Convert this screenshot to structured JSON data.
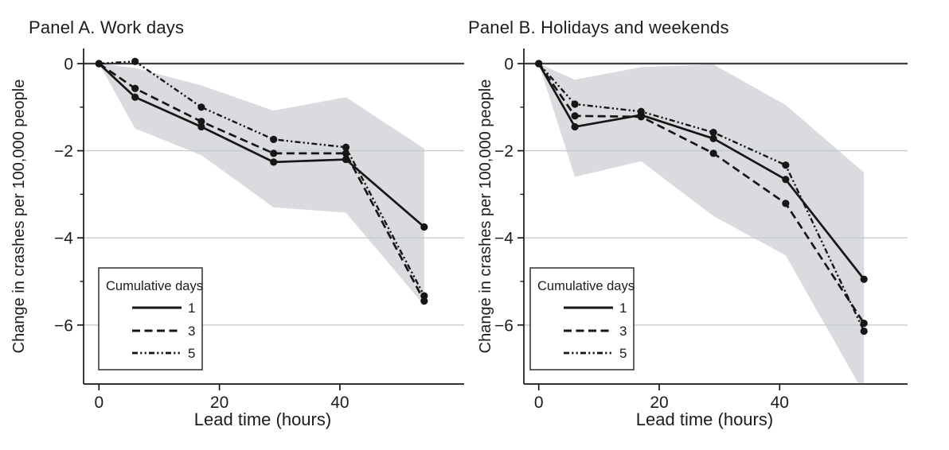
{
  "figure": {
    "y_axis_label": "Change in crashes per 100,000 people",
    "x_axis_label": "Lead time (hours)",
    "legend_title": "Cumulative days",
    "colors": {
      "line": "#161616",
      "marker": "#161616",
      "band": "#d9dbde",
      "gridline": "#c6cbd0",
      "zero_line": "#3c4044",
      "axis": "#161616",
      "text": "#1c1c1c",
      "legend_bg": "#ffffff",
      "legend_border": "#2e2e2e"
    }
  },
  "chart_data": [
    {
      "type": "line",
      "title": "Panel A. Work days",
      "xlabel": "Lead time (hours)",
      "ylabel": "Change in crashes per 100,000 people",
      "x": [
        0,
        6,
        17,
        29,
        41,
        54
      ],
      "x_ticks": [
        0,
        20,
        40
      ],
      "x_tick_labels": [
        "0",
        "20",
        "40"
      ],
      "y_ticks": [
        0,
        -2,
        -4,
        -6
      ],
      "y_tick_labels": [
        "0",
        "−2",
        "−4",
        "−6"
      ],
      "y_minor_ticks": [
        -1,
        -3,
        -5
      ],
      "xlim": [
        -2.6,
        60.5
      ],
      "ylim": [
        -7.35,
        0.35
      ],
      "grid": "horizontal",
      "legend_position": "bottom-left",
      "series": [
        {
          "name": "1",
          "style": "solid",
          "values": [
            0,
            -0.77,
            -1.45,
            -2.26,
            -2.2,
            -3.75
          ]
        },
        {
          "name": "3",
          "style": "dashed",
          "values": [
            0,
            -0.57,
            -1.33,
            -2.06,
            -2.06,
            -5.45
          ]
        },
        {
          "name": "5",
          "style": "dash-dot-dot",
          "values": [
            0,
            0.05,
            -1.0,
            -1.74,
            -1.92,
            -5.33
          ]
        }
      ],
      "band": {
        "upper": [
          0,
          -0.1,
          -0.5,
          -1.08,
          -0.77,
          -1.95
        ],
        "lower": [
          0,
          -1.49,
          -2.1,
          -3.3,
          -3.42,
          -5.55
        ]
      }
    },
    {
      "type": "line",
      "title": "Panel B. Holidays and weekends",
      "xlabel": "Lead time (hours)",
      "ylabel": "Change in crashes per 100,000 people",
      "x": [
        0,
        6,
        17,
        29,
        41,
        54
      ],
      "x_ticks": [
        0,
        20,
        40
      ],
      "x_tick_labels": [
        "0",
        "20",
        "40"
      ],
      "y_ticks": [
        0,
        -2,
        -4,
        -6
      ],
      "y_tick_labels": [
        "0",
        "−2",
        "−4",
        "−6"
      ],
      "y_minor_ticks": [
        -1,
        -3,
        -5
      ],
      "xlim": [
        -2.6,
        60.5
      ],
      "ylim": [
        -7.35,
        0.35
      ],
      "grid": "horizontal",
      "legend_position": "bottom-left",
      "series": [
        {
          "name": "1",
          "style": "solid",
          "values": [
            0,
            -1.45,
            -1.18,
            -1.72,
            -2.66,
            -4.95
          ]
        },
        {
          "name": "3",
          "style": "dashed",
          "values": [
            0,
            -1.2,
            -1.22,
            -2.06,
            -3.21,
            -5.96
          ]
        },
        {
          "name": "5",
          "style": "dash-dot-dot",
          "values": [
            0,
            -0.93,
            -1.1,
            -1.58,
            -2.33,
            -6.14
          ]
        }
      ],
      "band": {
        "upper": [
          0,
          -0.37,
          -0.08,
          -0.02,
          -0.95,
          -2.5
        ],
        "lower_x": [
          0,
          6,
          17,
          29,
          41,
          53,
          54
        ],
        "lower": [
          0,
          -2.6,
          -2.24,
          -3.5,
          -4.4,
          -7.33,
          -7.33
        ]
      }
    }
  ]
}
